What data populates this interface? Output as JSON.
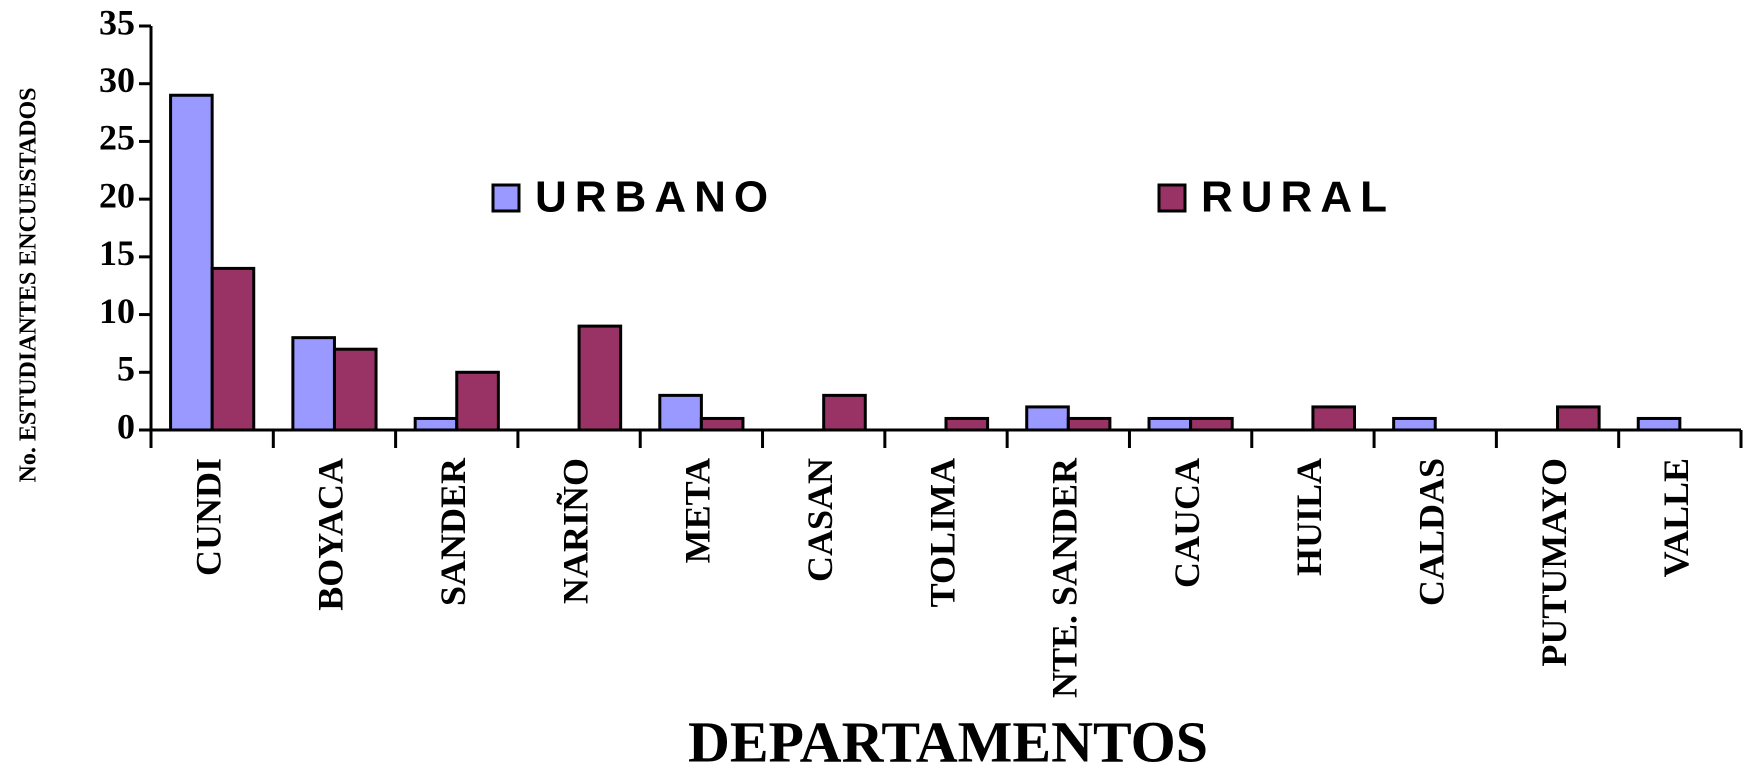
{
  "chart_data": {
    "type": "bar",
    "xlabel": "DEPARTAMENTOS",
    "ylabel": "No. ESTUDIANTES ENCUESTADOS",
    "categories": [
      "CUNDI",
      "BOYACA",
      "SANDER",
      "NARIÑO",
      "META",
      "CASAN",
      "TOLIMA",
      "NTE. SANDER",
      "CAUCA",
      "HUILA",
      "CALDAS",
      "PUTUMAYO",
      "VALLE"
    ],
    "series": [
      {
        "name": "URBANO",
        "color": "#9999ff",
        "values": [
          29,
          8,
          1,
          0,
          3,
          0,
          0,
          2,
          1,
          0,
          1,
          0,
          1
        ]
      },
      {
        "name": "RURAL",
        "color": "#993366",
        "values": [
          14,
          7,
          5,
          9,
          1,
          3,
          1,
          1,
          1,
          2,
          0,
          2,
          0
        ]
      }
    ],
    "ylim": [
      0,
      35
    ],
    "yticks": [
      0,
      5,
      10,
      15,
      20,
      25,
      30,
      35
    ]
  }
}
